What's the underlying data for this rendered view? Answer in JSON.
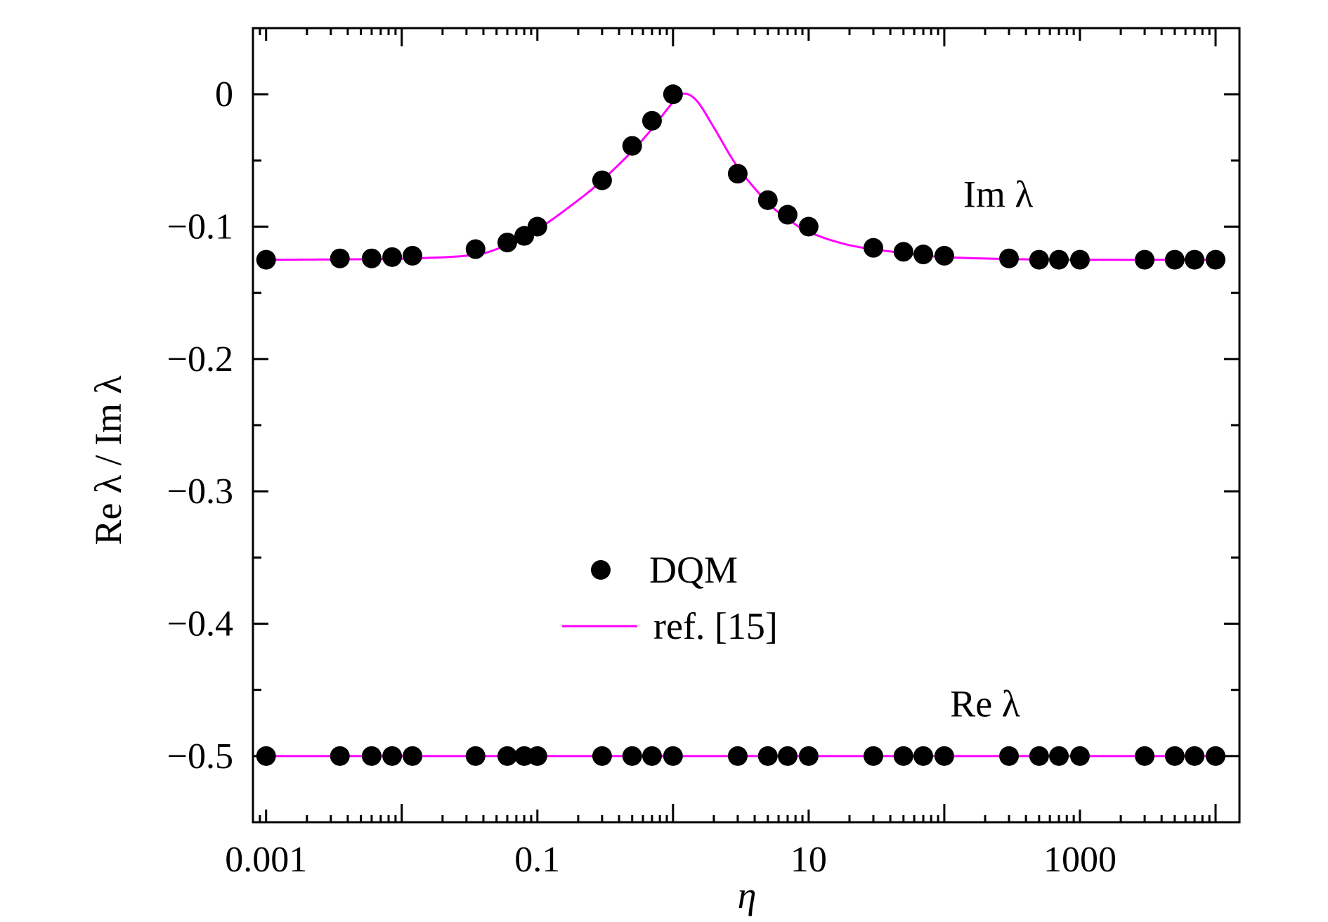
{
  "chart_data": {
    "type": "scatter",
    "title": "",
    "xlabel": "η",
    "ylabel": "Re λ / Im λ",
    "x_scale": "log",
    "xlim": [
      0.0008,
      15000
    ],
    "ylim": [
      -0.55,
      0.05
    ],
    "x_ticks": [
      {
        "value": 0.001,
        "label": "0.001"
      },
      {
        "value": 0.1,
        "label": "0.1"
      },
      {
        "value": 10,
        "label": "10"
      },
      {
        "value": 1000,
        "label": "1000"
      }
    ],
    "y_ticks": [
      {
        "value": 0,
        "label": "0"
      },
      {
        "value": -0.1,
        "label": "−0.1"
      },
      {
        "value": -0.2,
        "label": "−0.2"
      },
      {
        "value": -0.3,
        "label": "−0.3"
      },
      {
        "value": -0.4,
        "label": "−0.4"
      },
      {
        "value": -0.5,
        "label": "−0.5"
      }
    ],
    "grid": false,
    "legend_position": "center",
    "legend": [
      {
        "label": "DQM",
        "kind": "marker"
      },
      {
        "label": "ref. [15]",
        "kind": "line"
      }
    ],
    "annotations": [
      {
        "text": "Im λ",
        "x": 250,
        "y": -0.085
      },
      {
        "text": "Re λ",
        "x": 200,
        "y": -0.47
      }
    ],
    "colors": {
      "markers": "#000000",
      "reference_line": "#ff00ff",
      "axes": "#000000"
    },
    "series": [
      {
        "name": "DQM",
        "kind": "points",
        "group": "Im λ",
        "x": [
          0.001,
          0.0035,
          0.006,
          0.0085,
          0.012,
          0.035,
          0.06,
          0.08,
          0.1,
          0.3,
          0.5,
          0.7,
          1.0,
          3.0,
          5.0,
          7.0,
          10.0,
          30.0,
          50.0,
          70.0,
          100.0,
          300.0,
          500.0,
          700.0,
          1000.0,
          3000.0,
          5000.0,
          7000.0,
          10000.0
        ],
        "y": [
          -0.125,
          -0.124,
          -0.124,
          -0.123,
          -0.122,
          -0.117,
          -0.112,
          -0.107,
          -0.1,
          -0.065,
          -0.039,
          -0.02,
          0.0,
          -0.06,
          -0.08,
          -0.091,
          -0.1,
          -0.116,
          -0.119,
          -0.121,
          -0.122,
          -0.124,
          -0.125,
          -0.125,
          -0.125,
          -0.125,
          -0.125,
          -0.125,
          -0.125
        ]
      },
      {
        "name": "DQM",
        "kind": "points",
        "group": "Re λ",
        "x": [
          0.001,
          0.0035,
          0.006,
          0.0085,
          0.012,
          0.035,
          0.06,
          0.08,
          0.1,
          0.3,
          0.5,
          0.7,
          1.0,
          3.0,
          5.0,
          7.0,
          10.0,
          30.0,
          50.0,
          70.0,
          100.0,
          300.0,
          500.0,
          700.0,
          1000.0,
          3000.0,
          5000.0,
          7000.0,
          10000.0
        ],
        "y": [
          -0.5,
          -0.5,
          -0.5,
          -0.5,
          -0.5,
          -0.5,
          -0.5,
          -0.5,
          -0.5,
          -0.5,
          -0.5,
          -0.5,
          -0.5,
          -0.5,
          -0.5,
          -0.5,
          -0.5,
          -0.5,
          -0.5,
          -0.5,
          -0.5,
          -0.5,
          -0.5,
          -0.5,
          -0.5,
          -0.5,
          -0.5,
          -0.5,
          -0.5
        ]
      },
      {
        "name": "ref. [15]",
        "kind": "line",
        "group": "Im λ",
        "x": [
          0.001,
          0.003,
          0.01,
          0.03,
          0.05,
          0.1,
          0.2,
          0.3,
          0.5,
          0.7,
          1.0,
          1.2,
          1.5,
          2.0,
          3.0,
          5.0,
          7.0,
          10.0,
          20.0,
          50.0,
          100.0,
          300.0,
          1000.0,
          10000.0
        ],
        "y": [
          -0.125,
          -0.1248,
          -0.1242,
          -0.122,
          -0.117,
          -0.102,
          -0.08,
          -0.065,
          -0.043,
          -0.026,
          -0.006,
          0.0005,
          -0.005,
          -0.025,
          -0.055,
          -0.082,
          -0.094,
          -0.104,
          -0.114,
          -0.12,
          -0.123,
          -0.1245,
          -0.125,
          -0.125
        ]
      },
      {
        "name": "ref. [15]",
        "kind": "line",
        "group": "Re λ",
        "x": [
          0.001,
          10000.0
        ],
        "y": [
          -0.5,
          -0.5
        ]
      }
    ]
  }
}
